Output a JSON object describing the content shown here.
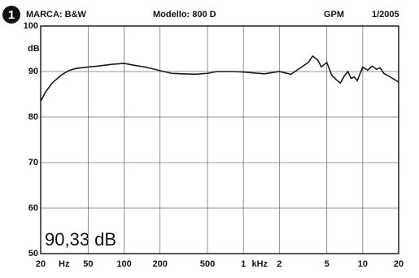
{
  "chart_data": {
    "type": "line",
    "badge": "1",
    "brand": "MARCA: B&W",
    "model": "Modello: 800 D",
    "publisher": "GPM",
    "date": "1/2005",
    "y_unit": "dB",
    "x_unit_low": "Hz",
    "x_unit_high": "kHz",
    "annotation": "90,33 dB",
    "log_x": true,
    "grid": true,
    "x": [
      20,
      22,
      25,
      30,
      35,
      40,
      50,
      60,
      80,
      100,
      120,
      150,
      200,
      250,
      300,
      400,
      500,
      600,
      800,
      1000,
      1200,
      1500,
      2000,
      2500,
      3000,
      3500,
      3800,
      4200,
      4500,
      5000,
      5500,
      6000,
      6500,
      7000,
      7500,
      8000,
      8500,
      9000,
      10000,
      11000,
      12000,
      13000,
      14000,
      15000,
      17000,
      20000
    ],
    "series": [
      {
        "color": "#1a1a1a",
        "values": [
          83.5,
          85.5,
          87.5,
          89.3,
          90.3,
          90.7,
          91,
          91.2,
          91.6,
          91.8,
          91.4,
          91,
          90.2,
          89.6,
          89.5,
          89.4,
          89.6,
          90,
          90,
          89.9,
          89.7,
          89.5,
          90,
          89.4,
          90.8,
          92,
          93.4,
          92.5,
          91,
          92,
          89.2,
          88.2,
          87.5,
          89,
          90,
          88.5,
          88.8,
          88,
          91,
          90.3,
          91.2,
          90.5,
          90.8,
          89.6,
          88.8,
          87.7
        ]
      }
    ],
    "xlim": [
      20,
      20000
    ],
    "ylim": [
      50,
      100
    ],
    "xticks": [
      20,
      50,
      100,
      200,
      500,
      {
        "value": 1000,
        "label": "1"
      },
      {
        "value": 2000,
        "label": "2"
      },
      {
        "value": 5000,
        "label": "5"
      },
      {
        "value": 10000,
        "label": "10"
      },
      {
        "value": 20000,
        "label": "20"
      }
    ],
    "yticks": [
      50,
      60,
      70,
      80,
      90,
      100
    ]
  }
}
